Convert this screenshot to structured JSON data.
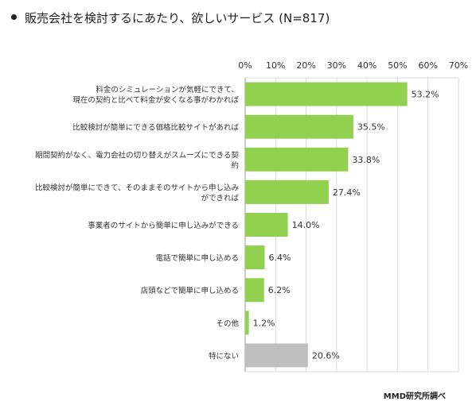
{
  "title": "販売会社を検討するにあたり、欲しいサービス (N=817)",
  "source": "MMD研究所調べ",
  "colors": {
    "main": "#92d050",
    "other": "#bfbfbf",
    "axis": "#999999"
  },
  "chart_data": {
    "type": "bar",
    "orientation": "horizontal",
    "title": "販売会社を検討するにあたり、欲しいサービス (N=817)",
    "xlim": [
      0,
      70
    ],
    "ticks": [
      0,
      10,
      20,
      30,
      40,
      50,
      60,
      70
    ],
    "tick_labels": [
      "0%",
      "10%",
      "20%",
      "30%",
      "40%",
      "50%",
      "60%",
      "70%"
    ],
    "grid": true,
    "categories": [
      [
        "料金のシミュレーションが気軽にできて、",
        "現在の契約と比べて料金が安くなる事がわかれば"
      ],
      [
        "比較検討が簡単にできる価格比較サイトがあれば"
      ],
      [
        "期間契約がなく、電力会社の切り替えがスムーズにできる契",
        "約"
      ],
      [
        "比較検討が簡単にできて、そのままそのサイトから申し込み",
        "ができれば"
      ],
      [
        "事業者のサイトから簡単に申し込みができる"
      ],
      [
        "電話で簡単に申し込める"
      ],
      [
        "店頭などで簡単に申し込める"
      ],
      [
        "その他"
      ],
      [
        "特にない"
      ]
    ],
    "values": [
      53.2,
      35.5,
      33.8,
      27.4,
      14.0,
      6.4,
      6.2,
      1.2,
      20.6
    ],
    "value_labels": [
      "53.2%",
      "35.5%",
      "33.8%",
      "27.4%",
      "14.0%",
      "6.4%",
      "6.2%",
      "1.2%",
      "20.6%"
    ],
    "highlight_gray_index": 8
  }
}
